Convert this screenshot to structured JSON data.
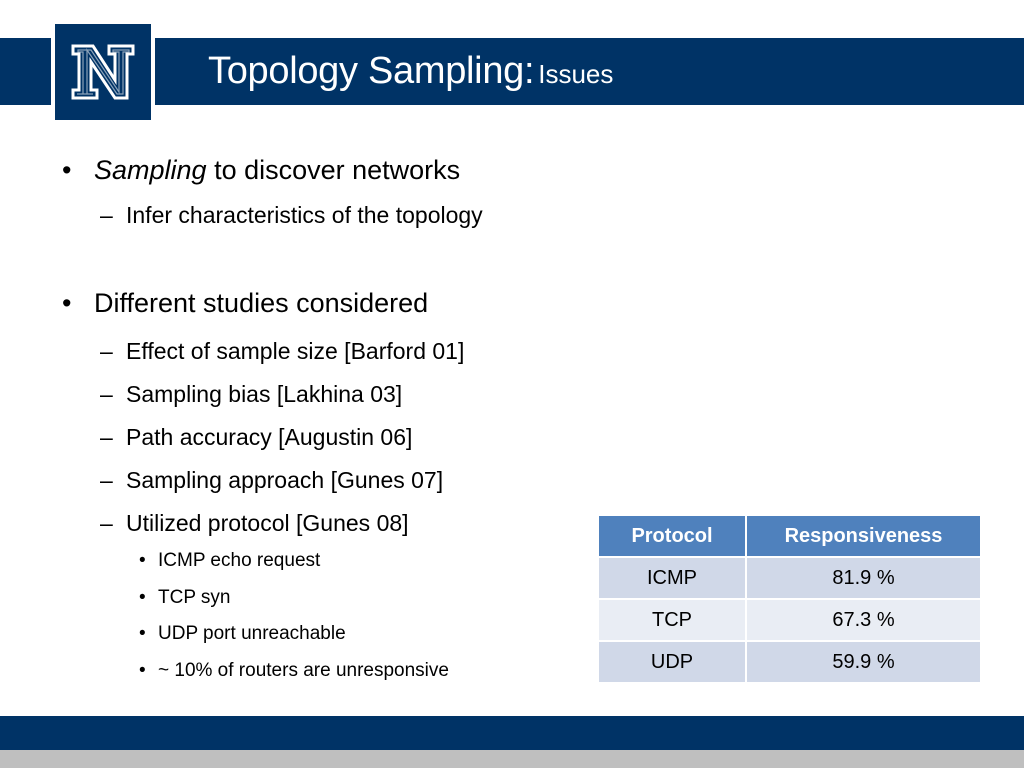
{
  "slide": {
    "title": "Topology Sampling:",
    "title_sub": "Issues",
    "logo_letter": "N"
  },
  "bullets": [
    {
      "level": 1,
      "marker": "•",
      "emphasis": "Sampling",
      "text": " to discover networks"
    },
    {
      "level": 2,
      "marker": "–",
      "text": "Infer characteristics of the topology"
    },
    {
      "level": 1,
      "marker": "•",
      "text": "Different studies considered"
    },
    {
      "level": 2,
      "marker": "–",
      "text": "Effect of sample size [Barford 01]"
    },
    {
      "level": 2,
      "marker": "–",
      "text": "Sampling bias [Lakhina 03]"
    },
    {
      "level": 2,
      "marker": "–",
      "text": "Path accuracy [Augustin 06]"
    },
    {
      "level": 2,
      "marker": "–",
      "text": "Sampling approach [Gunes 07]"
    },
    {
      "level": 2,
      "marker": "–",
      "text": "Utilized protocol [Gunes 08]"
    },
    {
      "level": 3,
      "marker": "•",
      "text": "ICMP echo request"
    },
    {
      "level": 3,
      "marker": "•",
      "text": "TCP syn"
    },
    {
      "level": 3,
      "marker": "•",
      "text": "UDP port unreachable"
    },
    {
      "level": 3,
      "marker": "•",
      "text": "~ 10% of routers are unresponsive"
    }
  ],
  "table": {
    "headers": [
      "Protocol",
      "Responsiveness"
    ],
    "rows": [
      [
        "ICMP",
        "81.9 %"
      ],
      [
        "TCP",
        "67.3 %"
      ],
      [
        "UDP",
        "59.9 %"
      ]
    ]
  },
  "colors": {
    "brand_navy": "#003366",
    "table_header": "#4f81bd",
    "row_dark": "#d0d8e8",
    "row_light": "#e9edf4",
    "footer_gray": "#bfbfbf"
  }
}
